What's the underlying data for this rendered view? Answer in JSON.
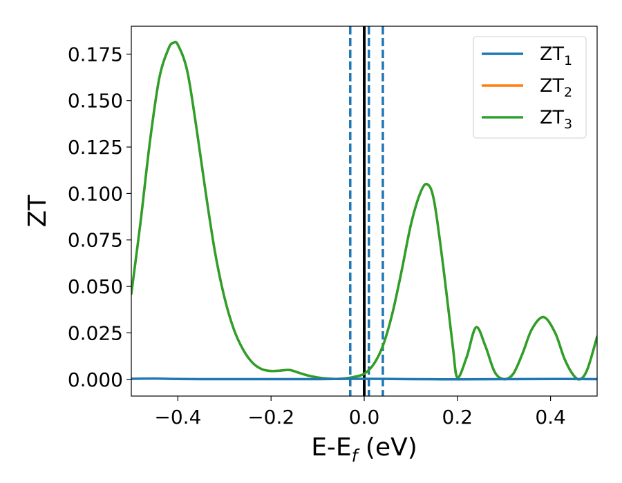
{
  "chart_data": {
    "type": "line",
    "title": "",
    "xlabel": "E-E",
    "xlabel_sub": "f",
    "xlabel_unit": " (eV)",
    "ylabel": "ZT",
    "xlim": [
      -0.5,
      0.5
    ],
    "ylim": [
      -0.009,
      0.19
    ],
    "xticks": [
      -0.4,
      -0.2,
      0.0,
      0.2,
      0.4
    ],
    "xtick_labels": [
      "−0.4",
      "−0.2",
      "0.0",
      "0.2",
      "0.4"
    ],
    "yticks": [
      0.0,
      0.025,
      0.05,
      0.075,
      0.1,
      0.125,
      0.15,
      0.175
    ],
    "ytick_labels": [
      "0.000",
      "0.025",
      "0.050",
      "0.075",
      "0.100",
      "0.125",
      "0.150",
      "0.175"
    ],
    "grid": false,
    "legend": "top-right",
    "vlines": [
      {
        "x": 0.0,
        "style": "solid",
        "color": "#000000"
      },
      {
        "x": -0.03,
        "style": "dashed",
        "color": "#1f77b4"
      },
      {
        "x": 0.01,
        "style": "dashed",
        "color": "#1f77b4"
      },
      {
        "x": 0.04,
        "style": "dashed",
        "color": "#1f77b4"
      }
    ],
    "series": [
      {
        "name": "ZT",
        "name_sub": "1",
        "color": "#1f77b4",
        "x": [
          -0.5,
          -0.45,
          -0.4,
          -0.35,
          -0.3,
          -0.2,
          -0.1,
          0.0,
          0.1,
          0.2,
          0.3,
          0.4,
          0.5
        ],
        "y": [
          0.0003,
          0.0004,
          0.0002,
          0.0001,
          0.0001,
          0.0001,
          0.0001,
          0.0003,
          0.0001,
          0.0,
          0.0001,
          0.0002,
          0.0001
        ]
      },
      {
        "name": "ZT",
        "name_sub": "2",
        "color": "#ff7f0e",
        "x": [
          -0.5,
          -0.48,
          -0.46,
          -0.44,
          -0.42,
          -0.41,
          -0.4,
          -0.38,
          -0.36,
          -0.34,
          -0.32,
          -0.3,
          -0.28,
          -0.26,
          -0.24,
          -0.22,
          -0.2,
          -0.18,
          -0.16,
          -0.14,
          -0.12,
          -0.1,
          -0.08,
          -0.06,
          -0.04,
          -0.02,
          0.0,
          0.02,
          0.04,
          0.06,
          0.08,
          0.1,
          0.12,
          0.135,
          0.15,
          0.17,
          0.19,
          0.2,
          0.22,
          0.24,
          0.26,
          0.28,
          0.3,
          0.32,
          0.34,
          0.36,
          0.385,
          0.41,
          0.43,
          0.45,
          0.465,
          0.48,
          0.5
        ],
        "y": [
          0.046,
          0.085,
          0.128,
          0.162,
          0.178,
          0.181,
          0.18,
          0.166,
          0.135,
          0.1,
          0.068,
          0.044,
          0.027,
          0.016,
          0.009,
          0.0055,
          0.0045,
          0.0047,
          0.005,
          0.0035,
          0.002,
          0.001,
          0.0004,
          0.0002,
          0.0005,
          0.0014,
          0.003,
          0.008,
          0.018,
          0.035,
          0.058,
          0.083,
          0.1,
          0.105,
          0.096,
          0.06,
          0.018,
          0.001,
          0.012,
          0.028,
          0.018,
          0.004,
          0.0001,
          0.003,
          0.014,
          0.027,
          0.0335,
          0.025,
          0.011,
          0.002,
          0.0002,
          0.006,
          0.023
        ]
      },
      {
        "name": "ZT",
        "name_sub": "3",
        "color": "#2ca02c",
        "x": [
          -0.5,
          -0.48,
          -0.46,
          -0.44,
          -0.42,
          -0.41,
          -0.4,
          -0.38,
          -0.36,
          -0.34,
          -0.32,
          -0.3,
          -0.28,
          -0.26,
          -0.24,
          -0.22,
          -0.2,
          -0.18,
          -0.16,
          -0.14,
          -0.12,
          -0.1,
          -0.08,
          -0.06,
          -0.04,
          -0.02,
          0.0,
          0.02,
          0.04,
          0.06,
          0.08,
          0.1,
          0.12,
          0.135,
          0.15,
          0.17,
          0.19,
          0.2,
          0.22,
          0.24,
          0.26,
          0.28,
          0.3,
          0.32,
          0.34,
          0.36,
          0.385,
          0.41,
          0.43,
          0.45,
          0.465,
          0.48,
          0.5
        ],
        "y": [
          0.046,
          0.085,
          0.128,
          0.162,
          0.178,
          0.181,
          0.18,
          0.166,
          0.135,
          0.1,
          0.068,
          0.044,
          0.027,
          0.016,
          0.009,
          0.0055,
          0.0045,
          0.0047,
          0.005,
          0.0035,
          0.002,
          0.001,
          0.0004,
          0.0002,
          0.0005,
          0.0014,
          0.003,
          0.008,
          0.018,
          0.035,
          0.058,
          0.083,
          0.1,
          0.105,
          0.096,
          0.06,
          0.018,
          0.001,
          0.012,
          0.028,
          0.018,
          0.004,
          0.0001,
          0.003,
          0.014,
          0.027,
          0.0335,
          0.025,
          0.011,
          0.002,
          0.0002,
          0.006,
          0.023
        ]
      }
    ]
  }
}
